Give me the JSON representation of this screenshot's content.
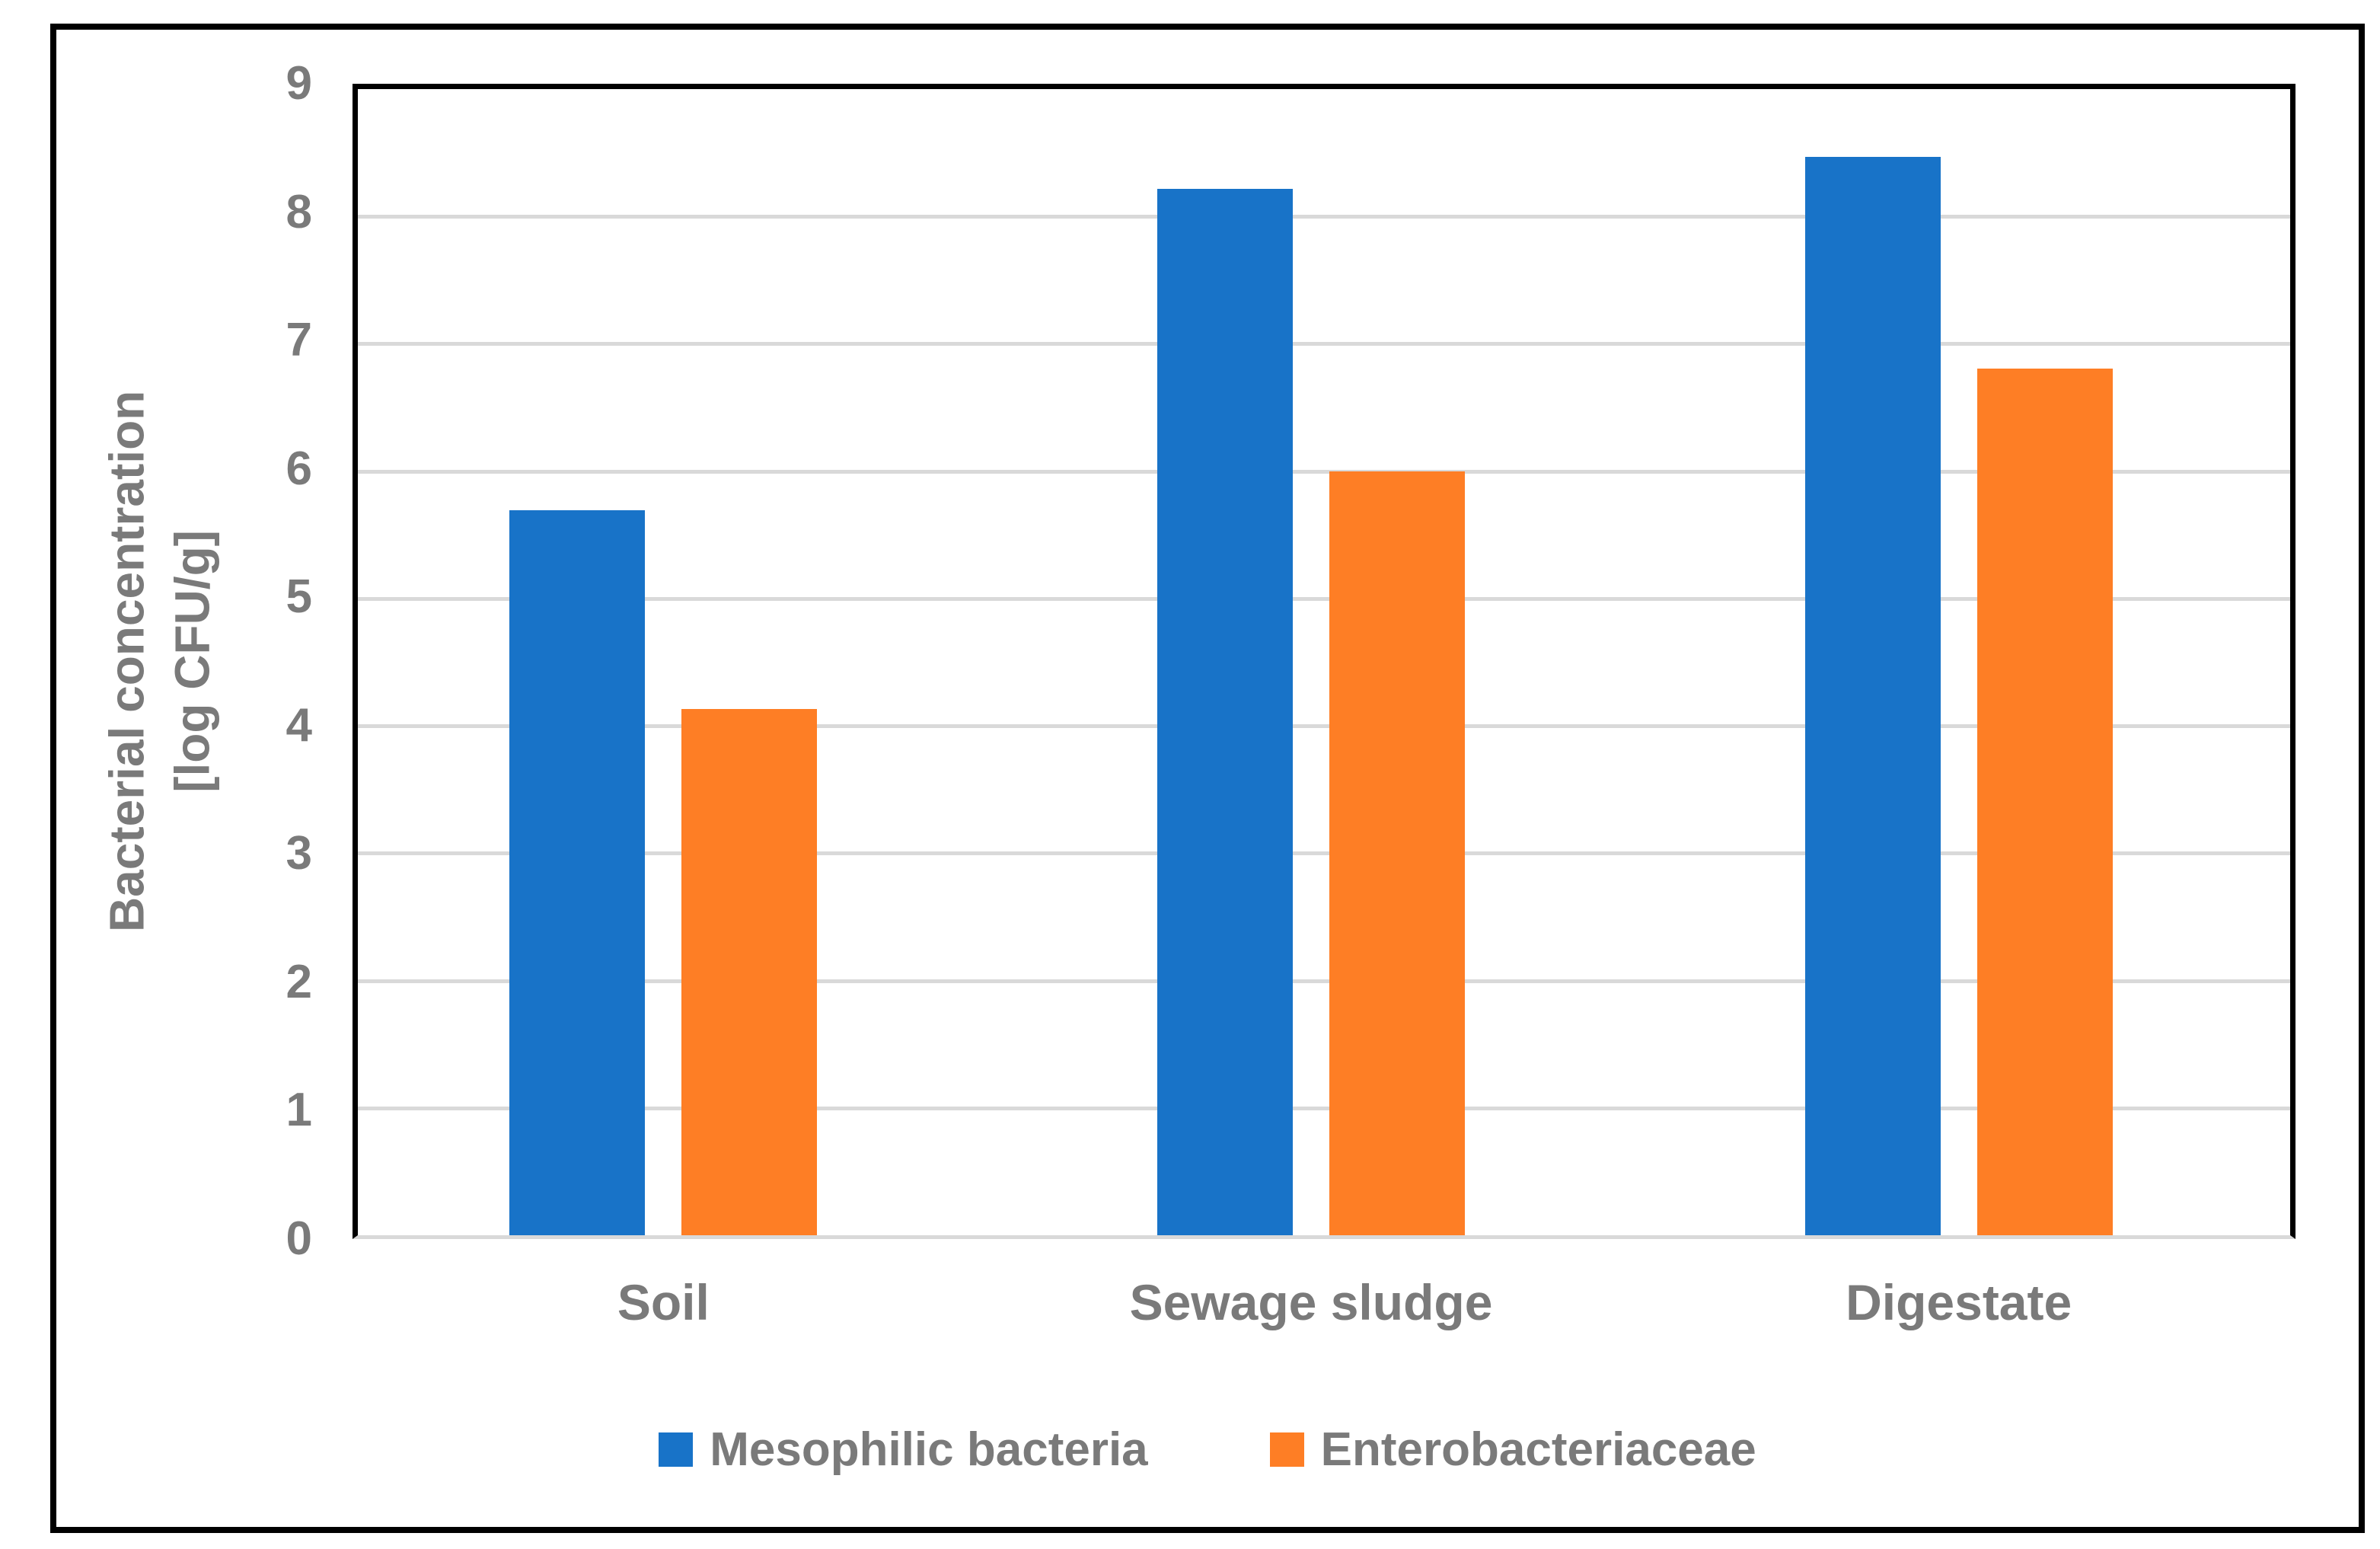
{
  "chart_data": {
    "type": "bar",
    "title": "",
    "categories": [
      "Soil",
      "Sewage sludge",
      "Digestate"
    ],
    "series": [
      {
        "name": "Mesophilic bacteria",
        "color": "#1873c8",
        "values": [
          5.65,
          8.15,
          8.4
        ]
      },
      {
        "name": "Enterobacteriaceae",
        "color": "#fe7e25",
        "values": [
          4.1,
          5.95,
          6.75
        ]
      }
    ],
    "ylabel_line1": "Bacterial concentration",
    "ylabel_line2": "[log CFU/g]",
    "ylim": [
      0,
      9
    ],
    "yticks": [
      0,
      1,
      2,
      3,
      4,
      5,
      6,
      7,
      8,
      9
    ],
    "grid": "horizontal",
    "legend_position": "bottom"
  },
  "colors": {
    "background": "#ffffff",
    "frame_border": "#000000",
    "axis_line": "#000000",
    "gridline": "#d9d9d9",
    "text": "#7a7a7a"
  }
}
